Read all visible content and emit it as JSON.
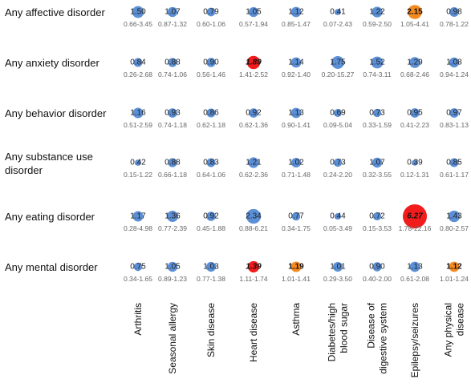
{
  "chart_data": {
    "type": "bubble-matrix",
    "title": "",
    "row_labels": [
      [
        "Any affective disorder"
      ],
      [
        "Any anxiety disorder"
      ],
      [
        "Any behavior disorder"
      ],
      [
        "Any substance use",
        "disorder"
      ],
      [
        "Any eating disorder"
      ],
      [
        "Any mental disorder"
      ]
    ],
    "column_labels": [
      [
        "Arthritis"
      ],
      [
        "Seasonal allergy"
      ],
      [
        "Skin disease"
      ],
      [
        "Heart disease"
      ],
      [
        "Asthma"
      ],
      [
        "Diabetes/high",
        "blood sugar"
      ],
      [
        "Disease of",
        "digestive system"
      ],
      [
        "Epilepsy/seizures"
      ],
      [
        "Any physical",
        "disease"
      ]
    ],
    "colors": {
      "default": "#5b8fd6",
      "significant": "#f58a1f",
      "strong": "#f21c1c"
    },
    "cells": [
      [
        {
          "or": "1.50",
          "ci": "0.66-3.45",
          "sig": "none"
        },
        {
          "or": "1.07",
          "ci": "0.87-1.32",
          "sig": "none"
        },
        {
          "or": "0.79",
          "ci": "0.60-1.06",
          "sig": "none"
        },
        {
          "or": "1.05",
          "ci": "0.57-1.94",
          "sig": "none"
        },
        {
          "or": "1.12",
          "ci": "0.85-1.47",
          "sig": "none"
        },
        {
          "or": "0.41",
          "ci": "0.07-2.43",
          "sig": "none"
        },
        {
          "or": "1.22",
          "ci": "0.59-2.50",
          "sig": "none"
        },
        {
          "or": "2.15",
          "ci": "1.05-4.41",
          "sig": "significant"
        },
        {
          "or": "0.98",
          "ci": "0.78-1.22",
          "sig": "none"
        }
      ],
      [
        {
          "or": "0.84",
          "ci": "0.26-2.68",
          "sig": "none"
        },
        {
          "or": "0.88",
          "ci": "0.74-1.06",
          "sig": "none"
        },
        {
          "or": "0.90",
          "ci": "0.56-1.46",
          "sig": "none"
        },
        {
          "or": "1.89",
          "ci": "1.41-2.52",
          "sig": "strong"
        },
        {
          "or": "1.14",
          "ci": "0.92-1.40",
          "sig": "none"
        },
        {
          "or": "1.75",
          "ci": "0.20-15.27",
          "sig": "none"
        },
        {
          "or": "1.52",
          "ci": "0.74-3.11",
          "sig": "none"
        },
        {
          "or": "1.29",
          "ci": "0.68-2.46",
          "sig": "none"
        },
        {
          "or": "1.08",
          "ci": "0.94-1.24",
          "sig": "none"
        }
      ],
      [
        {
          "or": "1.16",
          "ci": "0.51-2.59",
          "sig": "none"
        },
        {
          "or": "0.93",
          "ci": "0.74-1.18",
          "sig": "none"
        },
        {
          "or": "0.86",
          "ci": "0.62-1.18",
          "sig": "none"
        },
        {
          "or": "0.92",
          "ci": "0.62-1.36",
          "sig": "none"
        },
        {
          "or": "1.13",
          "ci": "0.90-1.41",
          "sig": "none"
        },
        {
          "or": "0.69",
          "ci": "0.09-5.04",
          "sig": "none"
        },
        {
          "or": "0.73",
          "ci": "0.33-1.59",
          "sig": "none"
        },
        {
          "or": "0.95",
          "ci": "0.41-2.23",
          "sig": "none"
        },
        {
          "or": "0.97",
          "ci": "0.83-1.13",
          "sig": "none"
        }
      ],
      [
        {
          "or": "0.42",
          "ci": "0.15-1.22",
          "sig": "none"
        },
        {
          "or": "0.88",
          "ci": "0.66-1.18",
          "sig": "none"
        },
        {
          "or": "0.83",
          "ci": "0.64-1.06",
          "sig": "none"
        },
        {
          "or": "1.21",
          "ci": "0.62-2.36",
          "sig": "none"
        },
        {
          "or": "1.02",
          "ci": "0.71-1.48",
          "sig": "none"
        },
        {
          "or": "0.73",
          "ci": "0.24-2.20",
          "sig": "none"
        },
        {
          "or": "1.07",
          "ci": "0.32-3.55",
          "sig": "none"
        },
        {
          "or": "0.39",
          "ci": "0.12-1.31",
          "sig": "none"
        },
        {
          "or": "0.85",
          "ci": "0.61-1.17",
          "sig": "none"
        }
      ],
      [
        {
          "or": "1.17",
          "ci": "0.28-4.98",
          "sig": "none"
        },
        {
          "or": "1.36",
          "ci": "0.77-2.39",
          "sig": "none"
        },
        {
          "or": "0.92",
          "ci": "0.45-1.88",
          "sig": "none"
        },
        {
          "or": "2.34",
          "ci": "0.88-6.21",
          "sig": "none"
        },
        {
          "or": "0.77",
          "ci": "0.34-1.75",
          "sig": "none"
        },
        {
          "or": "0.44",
          "ci": "0.05-3.49",
          "sig": "none"
        },
        {
          "or": "0.72",
          "ci": "0.15-3.53",
          "sig": "none"
        },
        {
          "or": "6.27",
          "ci": "1.78-22.16",
          "sig": "strong"
        },
        {
          "or": "1.43",
          "ci": "0.80-2.57",
          "sig": "none"
        }
      ],
      [
        {
          "or": "0.75",
          "ci": "0.34-1.65",
          "sig": "none"
        },
        {
          "or": "1.05",
          "ci": "0.89-1.23",
          "sig": "none"
        },
        {
          "or": "1.03",
          "ci": "0.77-1.38",
          "sig": "none"
        },
        {
          "or": "1.39",
          "ci": "1.11-1.74",
          "sig": "strong"
        },
        {
          "or": "1.19",
          "ci": "1.01-1.41",
          "sig": "significant"
        },
        {
          "or": "1.01",
          "ci": "0.29-3.50",
          "sig": "none"
        },
        {
          "or": "0.90",
          "ci": "0.40-2.00",
          "sig": "none"
        },
        {
          "or": "1.13",
          "ci": "0.61-2.08",
          "sig": "none"
        },
        {
          "or": "1.12",
          "ci": "1.01-1.24",
          "sig": "significant"
        }
      ]
    ]
  }
}
